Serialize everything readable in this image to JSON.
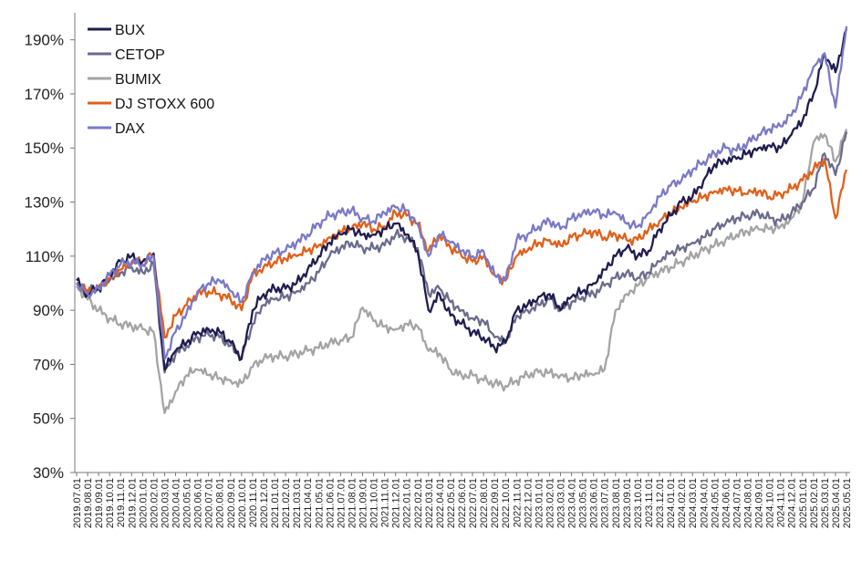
{
  "chart_data": {
    "type": "line",
    "title": "",
    "xlabel": "",
    "ylabel": "",
    "ylim": [
      30,
      200
    ],
    "yticks": [
      "30%",
      "50%",
      "70%",
      "90%",
      "110%",
      "130%",
      "150%",
      "170%",
      "190%"
    ],
    "ytick_values": [
      30,
      50,
      70,
      90,
      110,
      130,
      150,
      170,
      190
    ],
    "grid": false,
    "legend_position": "top-left",
    "x": [
      "2019.07.01",
      "2019.08.01",
      "2019.09.01",
      "2019.10.01",
      "2019.11.01",
      "2019.12.01",
      "2020.01.01",
      "2020.02.01",
      "2020.03.01",
      "2020.04.01",
      "2020.05.01",
      "2020.06.01",
      "2020.07.01",
      "2020.08.01",
      "2020.09.01",
      "2020.10.01",
      "2020.11.01",
      "2020.12.01",
      "2021.01.01",
      "2021.02.01",
      "2021.03.01",
      "2021.04.01",
      "2021.05.01",
      "2021.06.01",
      "2021.07.01",
      "2021.08.01",
      "2021.09.01",
      "2021.10.01",
      "2021.11.01",
      "2021.12.01",
      "2022.01.01",
      "2022.02.01",
      "2022.03.01",
      "2022.04.01",
      "2022.05.01",
      "2022.06.01",
      "2022.07.01",
      "2022.08.01",
      "2022.09.01",
      "2022.10.01",
      "2022.11.01",
      "2022.12.01",
      "2023.01.01",
      "2023.02.01",
      "2023.03.01",
      "2023.04.01",
      "2023.05.01",
      "2023.06.01",
      "2023.07.01",
      "2023.08.01",
      "2023.09.01",
      "2023.10.01",
      "2023.11.01",
      "2023.12.01",
      "2024.01.01",
      "2024.02.01",
      "2024.03.01",
      "2024.04.01",
      "2024.05.01",
      "2024.06.01",
      "2024.07.01",
      "2024.08.01",
      "2024.09.01",
      "2024.10.01",
      "2024.11.01",
      "2024.12.01",
      "2025.01.01",
      "2025.02.01",
      "2025.03.01",
      "2025.04.01",
      "2025.05.01"
    ],
    "series": [
      {
        "name": "BUX",
        "color": "#1f1d4f",
        "values": [
          101,
          96,
          98,
          103,
          108,
          110,
          108,
          111,
          68,
          75,
          78,
          82,
          83,
          82,
          78,
          72,
          90,
          96,
          98,
          98,
          100,
          105,
          110,
          115,
          118,
          120,
          118,
          118,
          120,
          122,
          118,
          112,
          90,
          96,
          88,
          85,
          82,
          80,
          76,
          78,
          90,
          92,
          95,
          96,
          90,
          95,
          97,
          100,
          105,
          110,
          113,
          110,
          112,
          120,
          125,
          130,
          132,
          138,
          144,
          145,
          146,
          148,
          150,
          151,
          150,
          155,
          160,
          170,
          185,
          178,
          194
        ]
      },
      {
        "name": "CETOP",
        "color": "#6b6b8c",
        "values": [
          100,
          97,
          98,
          101,
          104,
          106,
          104,
          107,
          67,
          74,
          77,
          80,
          81,
          80,
          77,
          73,
          85,
          92,
          94,
          95,
          97,
          100,
          104,
          110,
          113,
          115,
          113,
          113,
          114,
          118,
          117,
          113,
          96,
          98,
          93,
          90,
          87,
          86,
          80,
          78,
          88,
          90,
          92,
          94,
          90,
          93,
          95,
          96,
          99,
          102,
          104,
          102,
          104,
          108,
          111,
          113,
          115,
          117,
          120,
          122,
          124,
          125,
          126,
          124,
          123,
          126,
          130,
          135,
          148,
          140,
          156
        ]
      },
      {
        "name": "BUMIX",
        "color": "#a4a4a4",
        "values": [
          99,
          94,
          90,
          87,
          85,
          84,
          83,
          82,
          52,
          60,
          66,
          68,
          66,
          65,
          64,
          63,
          69,
          72,
          73,
          73,
          74,
          75,
          76,
          78,
          79,
          80,
          91,
          86,
          84,
          83,
          85,
          84,
          75,
          74,
          68,
          66,
          66,
          64,
          63,
          62,
          64,
          66,
          67,
          67,
          66,
          65,
          66,
          66,
          68,
          90,
          96,
          99,
          102,
          104,
          106,
          108,
          110,
          112,
          114,
          116,
          118,
          119,
          120,
          120,
          121,
          124,
          130,
          152,
          155,
          145,
          157
        ]
      },
      {
        "name": "DJ STOXX 600",
        "color": "#e0601a",
        "values": [
          100,
          97,
          99,
          102,
          105,
          107,
          108,
          111,
          80,
          88,
          92,
          96,
          97,
          96,
          94,
          90,
          103,
          106,
          108,
          109,
          110,
          112,
          114,
          117,
          119,
          120,
          122,
          120,
          121,
          126,
          125,
          122,
          112,
          118,
          113,
          110,
          108,
          110,
          103,
          101,
          110,
          112,
          115,
          116,
          114,
          117,
          118,
          119,
          117,
          118,
          116,
          116,
          120,
          123,
          126,
          128,
          130,
          132,
          134,
          135,
          134,
          133,
          134,
          132,
          133,
          135,
          138,
          142,
          146,
          124,
          142
        ]
      },
      {
        "name": "DAX",
        "color": "#7a79c6",
        "values": [
          100,
          96,
          98,
          103,
          107,
          108,
          107,
          110,
          72,
          82,
          89,
          97,
          100,
          101,
          97,
          93,
          104,
          109,
          111,
          112,
          115,
          118,
          122,
          125,
          126,
          127,
          124,
          123,
          126,
          128,
          127,
          122,
          110,
          118,
          115,
          112,
          110,
          112,
          103,
          101,
          116,
          118,
          121,
          123,
          120,
          124,
          126,
          127,
          125,
          126,
          122,
          121,
          126,
          132,
          136,
          138,
          142,
          145,
          148,
          150,
          149,
          152,
          155,
          157,
          158,
          162,
          170,
          180,
          185,
          165,
          195
        ]
      }
    ]
  }
}
